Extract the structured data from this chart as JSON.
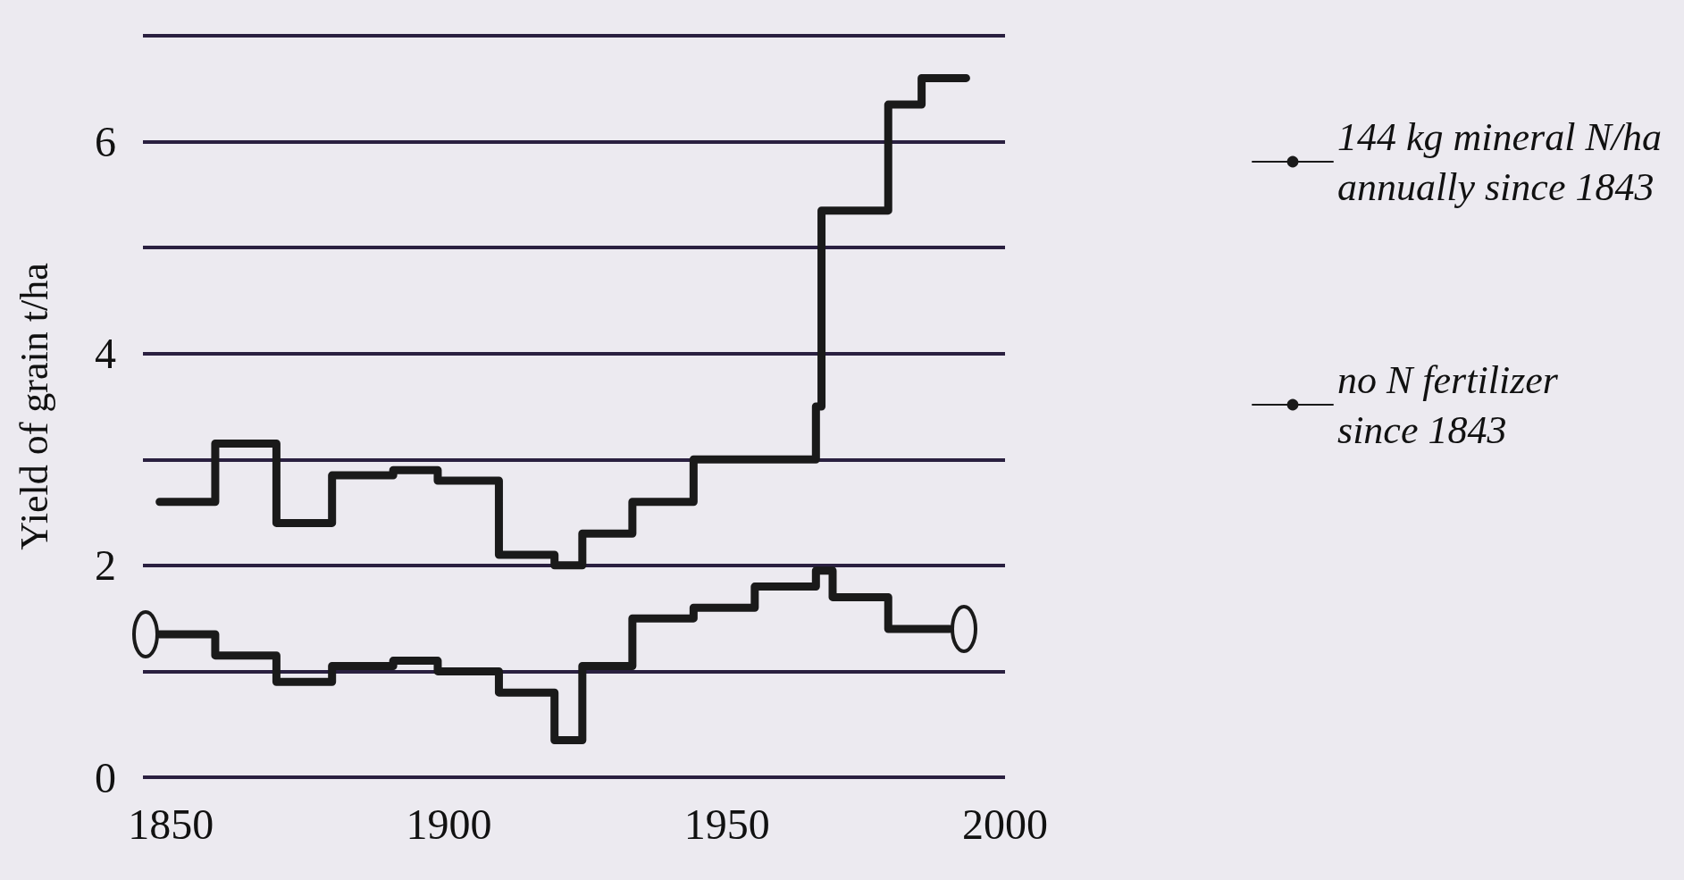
{
  "chart_data": {
    "type": "step",
    "ylabel": "Yield of grain t/ha",
    "xlim": [
      1845,
      2000
    ],
    "xticks": [
      1850,
      1900,
      1950,
      2000
    ],
    "ylim": [
      0,
      7
    ],
    "yticks": [
      0,
      {
        "value": 1,
        "label": null
      },
      2,
      {
        "value": 3,
        "label": null
      },
      4,
      {
        "value": 5,
        "label": null
      },
      6,
      {
        "value": 7,
        "label": null
      }
    ],
    "grid": "y",
    "legend": "right",
    "line_style": "solid",
    "series": [
      {
        "name": "144 kg mineral N/ha\nannually since 1843",
        "color": "#1a1a1a",
        "marker": "none",
        "x": [
          1848,
          1858,
          1869,
          1879,
          1890,
          1898,
          1909,
          1919,
          1924,
          1933,
          1944,
          1966,
          1967,
          1979,
          1985,
          1993
        ],
        "values": [
          2.6,
          3.15,
          2.4,
          2.85,
          2.9,
          2.8,
          2.1,
          2.0,
          2.3,
          2.6,
          3.0,
          3.5,
          5.35,
          6.35,
          6.6,
          6.6
        ]
      },
      {
        "name": "no N fertilizer\nsince 1843",
        "color": "#1a1a1a",
        "x": [
          1848,
          1858,
          1869,
          1879,
          1890,
          1898,
          1909,
          1919,
          1924,
          1933,
          1944,
          1955,
          1966,
          1969,
          1979,
          1990
        ],
        "values": [
          1.35,
          1.15,
          0.9,
          1.05,
          1.1,
          1.0,
          0.8,
          0.35,
          1.05,
          1.5,
          1.6,
          1.8,
          1.95,
          1.7,
          1.4,
          1.4
        ]
      }
    ]
  }
}
